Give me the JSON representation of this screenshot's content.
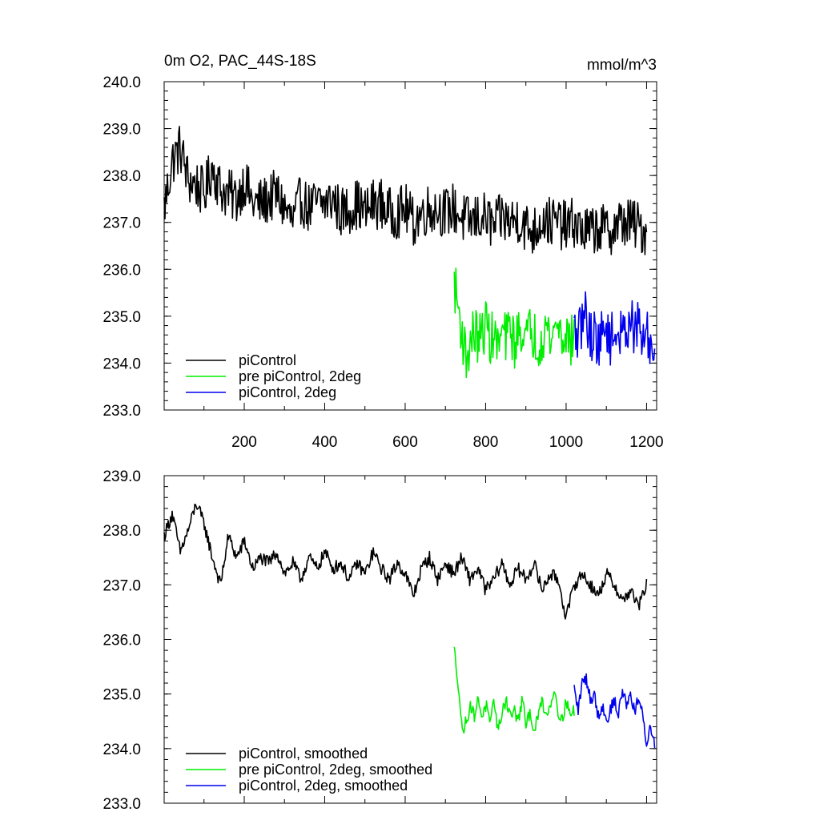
{
  "chart_data": [
    {
      "type": "line",
      "title": "0m O2, PAC_44S-18S",
      "units": "mmol/m^3",
      "xlabel": "",
      "ylabel": "",
      "xlim": [
        1,
        1225
      ],
      "ylim": [
        233.0,
        240.0
      ],
      "yticks": [
        "240.0",
        "239.0",
        "238.0",
        "237.0",
        "236.0",
        "235.0",
        "234.0",
        "233.0"
      ],
      "xticks": [
        "200",
        "400",
        "600",
        "800",
        "1000",
        "1200"
      ],
      "legend_position": "bottom-left",
      "series": [
        {
          "name": "piControl",
          "color": "#000000",
          "x_start": 1,
          "x_end": 1200,
          "values": [
            237.3,
            238.3,
            238.6,
            237.9,
            237.8,
            237.6,
            238.2,
            237.7,
            237.6,
            237.5,
            237.9,
            237.4,
            237.4,
            237.5,
            237.6,
            237.3,
            237.0,
            237.5,
            237.3,
            237.4,
            237.4,
            237.5,
            237.2,
            237.3,
            237.4,
            237.2,
            237.4,
            237.4,
            237.2,
            237.2,
            237.3,
            237.0,
            237.2,
            237.3,
            237.3,
            237.2,
            237.3,
            237.1,
            237.0,
            237.1,
            237.1,
            236.9,
            237.1,
            237.0,
            237.1,
            236.9,
            236.8,
            237.1,
            237.0,
            237.0,
            236.9,
            237.0,
            236.8,
            236.8,
            236.9,
            236.8,
            236.9,
            237.0,
            237.0,
            236.9,
            236.8
          ]
        },
        {
          "name": "pre piControl, 2deg",
          "color": "#00ee00",
          "x_start": 722,
          "x_end": 1020,
          "values": [
            235.7,
            235.2,
            234.6,
            234.1,
            234.4,
            234.7,
            234.5,
            234.6,
            234.9,
            234.5,
            234.6,
            234.3,
            234.7,
            234.5,
            234.8,
            234.4,
            234.6,
            234.8,
            234.5,
            234.7,
            234.6,
            234.4,
            234.6,
            234.8,
            234.5,
            234.7,
            234.9,
            234.5,
            234.7,
            234.4,
            234.6
          ]
        },
        {
          "name": "piControl, 2deg",
          "color": "#0000ee",
          "x_start": 1020,
          "x_end": 1220,
          "values": [
            234.7,
            234.5,
            234.9,
            235.1,
            234.5,
            234.7,
            234.4,
            234.6,
            234.8,
            234.5,
            234.6,
            234.7,
            234.5,
            234.8,
            235.0,
            234.6,
            234.8,
            234.5,
            234.6,
            234.4,
            234.2
          ]
        }
      ]
    },
    {
      "type": "line",
      "title": "",
      "xlabel": "",
      "ylabel": "",
      "xlim": [
        1,
        1225
      ],
      "ylim": [
        233.0,
        239.0
      ],
      "yticks": [
        "239.0",
        "238.0",
        "237.0",
        "236.0",
        "235.0",
        "234.0",
        "233.0"
      ],
      "legend_position": "bottom-left",
      "series": [
        {
          "name": "piControl, smoothed",
          "color": "#000000",
          "x_start": 1,
          "x_end": 1200,
          "values": [
            237.9,
            238.3,
            237.6,
            238.0,
            238.5,
            238.1,
            237.5,
            237.0,
            237.9,
            237.5,
            237.8,
            237.3,
            237.5,
            237.4,
            237.6,
            237.2,
            237.4,
            237.1,
            237.5,
            237.3,
            237.6,
            237.3,
            237.4,
            237.1,
            237.4,
            237.2,
            237.6,
            237.3,
            237.1,
            237.4,
            237.2,
            236.8,
            237.3,
            237.5,
            237.1,
            237.4,
            237.2,
            237.5,
            237.1,
            237.3,
            236.9,
            237.1,
            237.4,
            237.0,
            237.3,
            237.1,
            237.4,
            236.9,
            237.2,
            237.1,
            236.4,
            237.0,
            237.2,
            237.0,
            236.8,
            237.2,
            237.0,
            236.7,
            236.9,
            236.6,
            237.0
          ]
        },
        {
          "name": "pre piControl, 2deg, smoothed",
          "color": "#00ee00",
          "x_start": 722,
          "x_end": 1020,
          "values": [
            235.8,
            235.2,
            234.3,
            234.5,
            234.8,
            234.6,
            234.9,
            234.6,
            234.8,
            234.4,
            234.9,
            234.3,
            234.7,
            234.9,
            234.6,
            234.7,
            234.5,
            234.9,
            234.4,
            234.7,
            234.3,
            234.6,
            234.9,
            234.6,
            234.8,
            235.1,
            234.7,
            234.5,
            234.9,
            234.6,
            234.7
          ]
        },
        {
          "name": "piControl, 2deg, smoothed",
          "color": "#0000ee",
          "x_start": 1020,
          "x_end": 1220,
          "values": [
            235.1,
            234.7,
            235.2,
            235.3,
            234.9,
            235.0,
            234.6,
            234.8,
            234.5,
            234.7,
            234.9,
            234.6,
            235.1,
            234.8,
            235.0,
            234.7,
            234.9,
            234.6,
            234.1,
            234.4,
            234.1
          ]
        }
      ]
    }
  ]
}
